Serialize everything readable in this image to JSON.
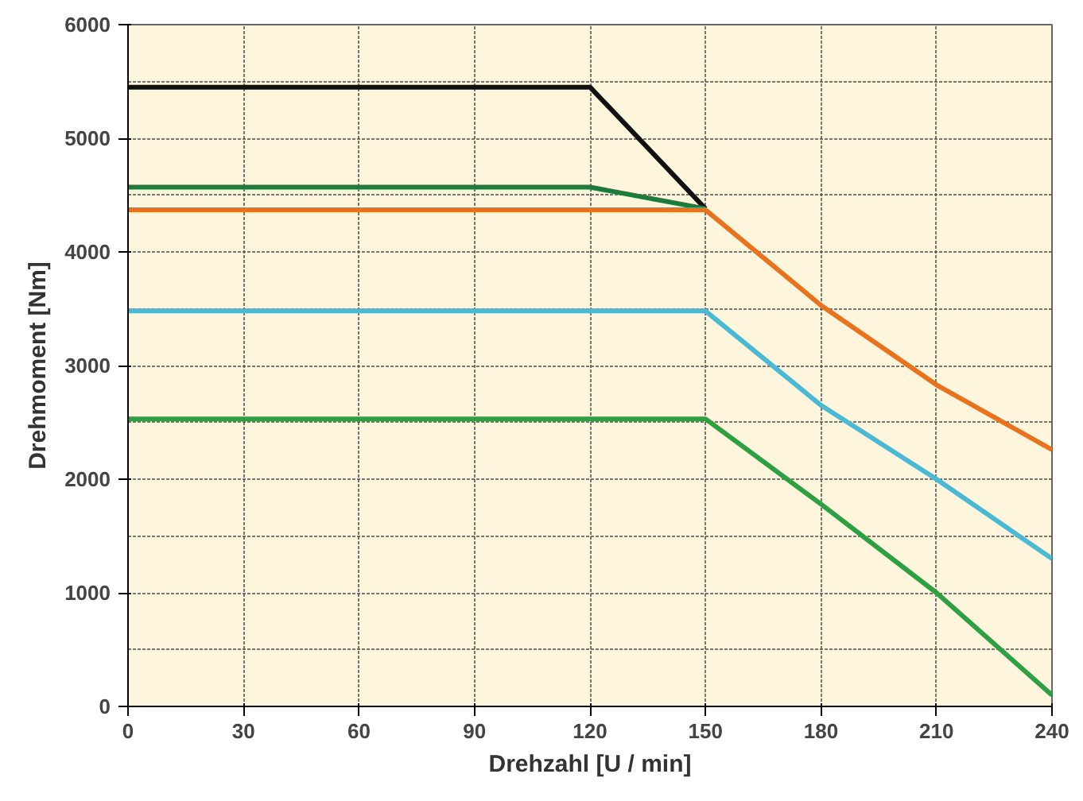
{
  "chart_data": {
    "type": "line",
    "xlabel": "Drehzahl [U / min]",
    "ylabel": "Drehmoment [Nm]",
    "xlim": [
      0,
      240
    ],
    "xticks": [
      0,
      30,
      60,
      90,
      120,
      150,
      180,
      210,
      240
    ],
    "ylim": [
      0,
      6000
    ],
    "yticks": [
      0,
      1000,
      2000,
      3000,
      4000,
      5000,
      6000
    ],
    "grid": true,
    "marker": "none",
    "line_style": "solid",
    "series": [
      {
        "color": "#111111",
        "x": [
          0,
          120,
          150
        ],
        "values": [
          5450,
          5450,
          4380
        ]
      },
      {
        "color": "#1e7b3c",
        "x": [
          0,
          120,
          150
        ],
        "values": [
          4570,
          4570,
          4380
        ]
      },
      {
        "color": "#e8731e",
        "x": [
          0,
          150,
          180,
          210,
          240
        ],
        "values": [
          4370,
          4370,
          3530,
          2830,
          2260
        ]
      },
      {
        "color": "#4bb8d4",
        "x": [
          0,
          150,
          180,
          210,
          240
        ],
        "values": [
          3480,
          3480,
          2650,
          2000,
          1300
        ]
      },
      {
        "color": "#2ea043",
        "x": [
          0,
          150,
          180,
          210,
          240
        ],
        "values": [
          2530,
          2530,
          1780,
          1000,
          100
        ]
      }
    ]
  }
}
